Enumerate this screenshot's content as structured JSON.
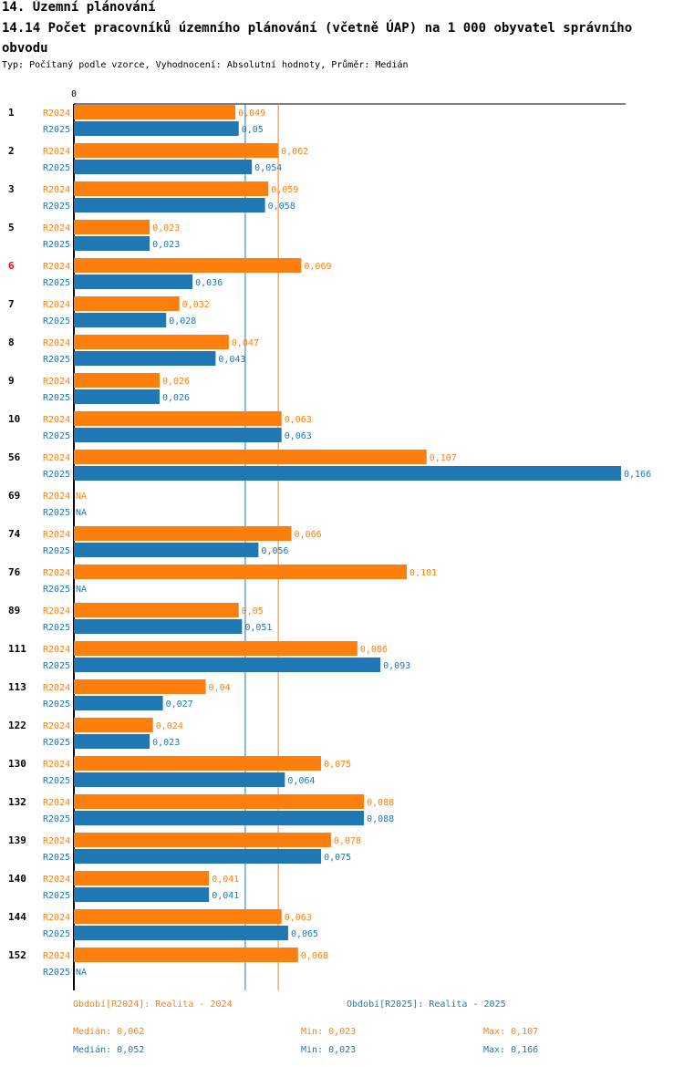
{
  "section_title": "14. Územní plánování",
  "chart_title": "14.14 Počet pracovníků územního plánování (včetně ÚAP) na 1 000 obyvatel správního obvodu",
  "subtitle": "Typ: Počítaný podle vzorce, Vyhodnocení: Absolutní hodnoty, Průměr: Medián",
  "chart_data": {
    "type": "bar",
    "orientation": "horizontal",
    "axis_zero_label": "0",
    "xlim": [
      0,
      0.166
    ],
    "highlight_category": "6",
    "highlight_color": "#ff0000",
    "series": [
      {
        "code": "R2024",
        "name": "Realita - 2024",
        "color": "#ff7f0e",
        "values": [
          0.049,
          0.062,
          0.059,
          0.023,
          0.069,
          0.032,
          0.047,
          0.026,
          0.063,
          0.107,
          null,
          0.066,
          0.101,
          0.05,
          0.086,
          0.04,
          0.024,
          0.075,
          0.088,
          0.078,
          0.041,
          0.063,
          0.068
        ],
        "labels": [
          "0,049",
          "0,062",
          "0,059",
          "0,023",
          "0,069",
          "0,032",
          "0,047",
          "0,026",
          "0,063",
          "0,107",
          "NA",
          "0,066",
          "0,101",
          "0,05",
          "0,086",
          "0,04",
          "0,024",
          "0,075",
          "0,088",
          "0,078",
          "0,041",
          "0,063",
          "0,068"
        ],
        "median": 0.062
      },
      {
        "code": "R2025",
        "name": "Realita - 2025",
        "color": "#1f77b4",
        "values": [
          0.05,
          0.054,
          0.058,
          0.023,
          0.036,
          0.028,
          0.043,
          0.026,
          0.063,
          0.166,
          null,
          0.056,
          null,
          0.051,
          0.093,
          0.027,
          0.023,
          0.064,
          0.088,
          0.075,
          0.041,
          0.065,
          null
        ],
        "labels": [
          "0,05",
          "0,054",
          "0,058",
          "0,023",
          "0,036",
          "0,028",
          "0,043",
          "0,026",
          "0,063",
          "0,166",
          "NA",
          "0,056",
          "NA",
          "0,051",
          "0,093",
          "0,027",
          "0,023",
          "0,064",
          "0,088",
          "0,075",
          "0,041",
          "0,065",
          "NA"
        ],
        "median": 0.052
      }
    ],
    "categories": [
      "1",
      "2",
      "3",
      "5",
      "6",
      "7",
      "8",
      "9",
      "10",
      "56",
      "69",
      "74",
      "76",
      "89",
      "111",
      "113",
      "122",
      "130",
      "132",
      "139",
      "140",
      "144",
      "152"
    ]
  },
  "legend": {
    "r2024": "Období[R2024]: Realita - 2024",
    "r2025": "Období[R2025]: Realita - 2025"
  },
  "stats": {
    "r2024": {
      "median": "Medián: 0,062",
      "min": "Min: 0,023",
      "max": "Max: 0,107"
    },
    "r2025": {
      "median": "Medián: 0,052",
      "min": "Min: 0,023",
      "max": "Max: 0,166"
    }
  }
}
